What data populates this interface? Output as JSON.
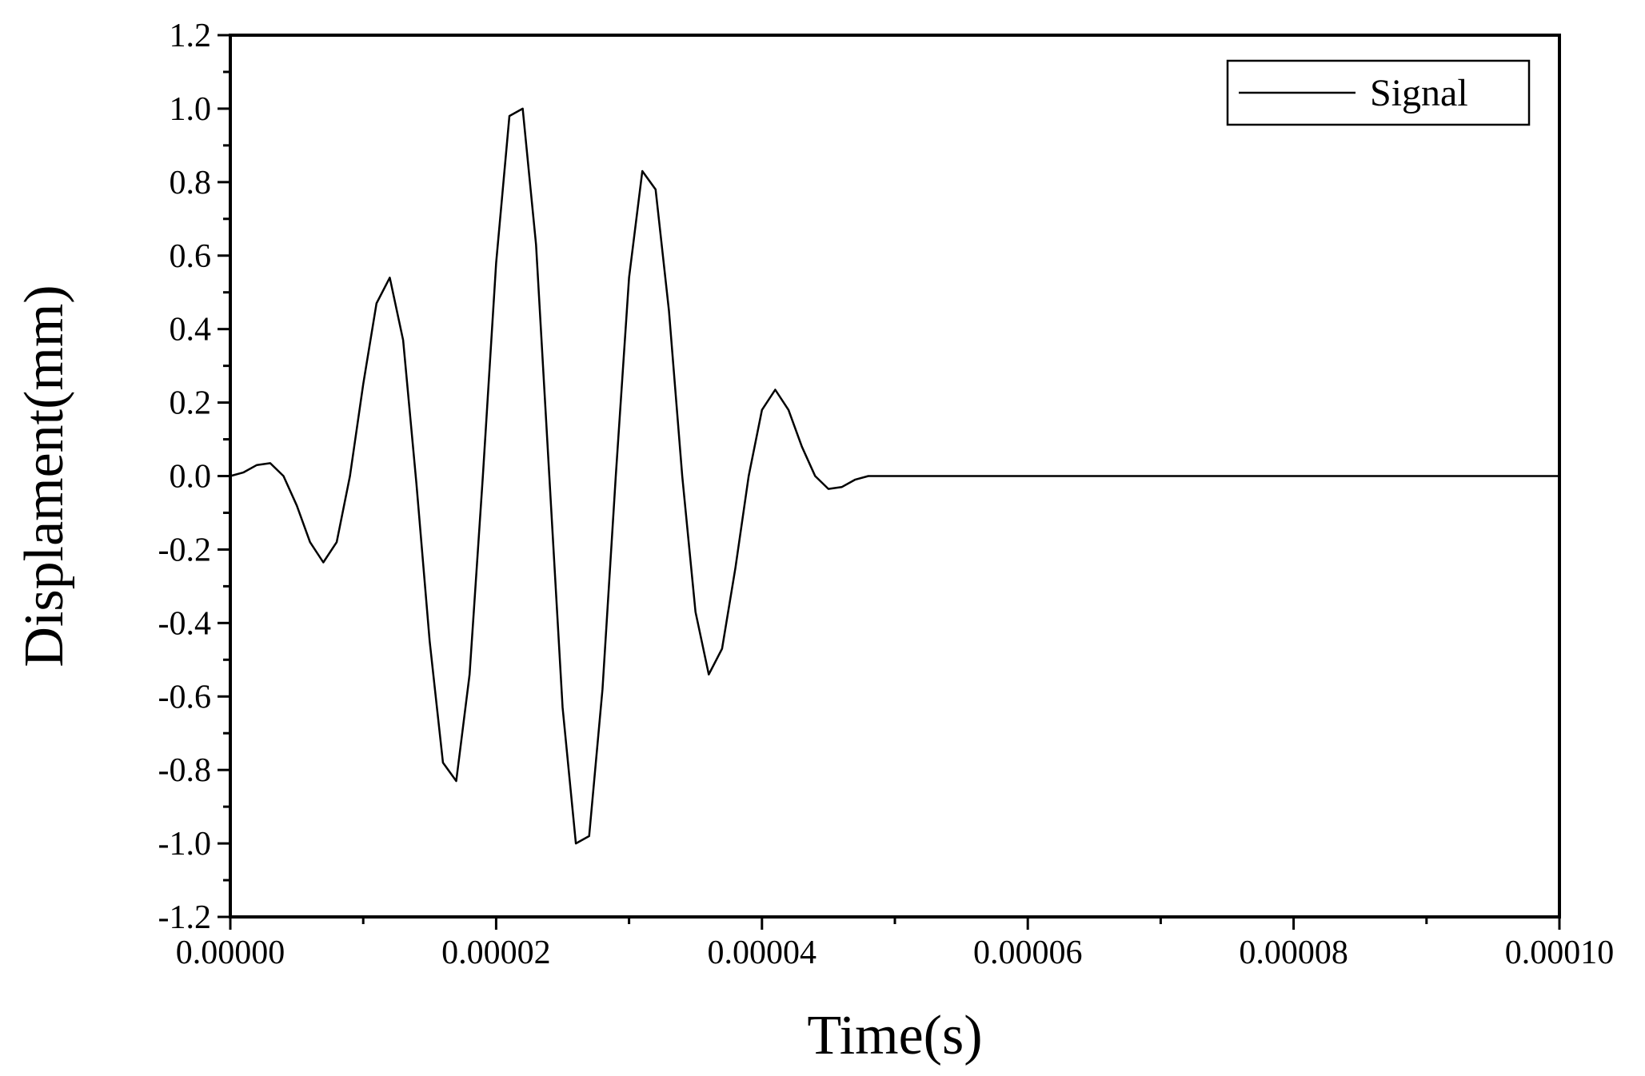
{
  "chart_data": {
    "type": "line",
    "title": "",
    "xlabel": "Time(s)",
    "ylabel": "Displament(mm)",
    "xlim": [
      0,
      0.0001
    ],
    "ylim": [
      -1.2,
      1.2
    ],
    "x_ticks": [
      0,
      2e-05,
      4e-05,
      6e-05,
      8e-05,
      0.0001
    ],
    "x_tick_labels": [
      "0.00000",
      "0.00002",
      "0.00004",
      "0.00006",
      "0.00008",
      "0.00010"
    ],
    "y_ticks": [
      -1.2,
      -1.0,
      -0.8,
      -0.6,
      -0.4,
      -0.2,
      0.0,
      0.2,
      0.4,
      0.6,
      0.8,
      1.0,
      1.2
    ],
    "y_tick_labels": [
      "-1.2",
      "-1.0",
      "-0.8",
      "-0.6",
      "-0.4",
      "-0.2",
      "0.0",
      "0.2",
      "0.4",
      "0.6",
      "0.8",
      "1.0",
      "1.2"
    ],
    "grid": false,
    "legend_position": "top-right",
    "series": [
      {
        "name": "Signal",
        "color": "#000000",
        "x": [
          0,
          1e-06,
          2e-06,
          3e-06,
          4e-06,
          5e-06,
          6e-06,
          7e-06,
          8e-06,
          9e-06,
          1e-05,
          1.1e-05,
          1.2e-05,
          1.3e-05,
          1.4e-05,
          1.5e-05,
          1.6e-05,
          1.7e-05,
          1.8e-05,
          1.9e-05,
          2e-05,
          2.1e-05,
          2.2e-05,
          2.3e-05,
          2.4e-05,
          2.5e-05,
          2.6e-05,
          2.7e-05,
          2.8e-05,
          2.9e-05,
          3e-05,
          3.1e-05,
          3.2e-05,
          3.3e-05,
          3.4e-05,
          3.5e-05,
          3.6e-05,
          3.7e-05,
          3.8e-05,
          3.9e-05,
          4e-05,
          4.1e-05,
          4.2e-05,
          4.3e-05,
          4.4e-05,
          4.5e-05,
          4.6e-05,
          4.7e-05,
          4.8e-05,
          4.9e-05,
          5e-05,
          0.0001
        ],
        "y": [
          0.0,
          0.01,
          0.03,
          0.035,
          0.0,
          -0.08,
          -0.18,
          -0.235,
          -0.18,
          0.0,
          0.25,
          0.47,
          0.54,
          0.37,
          -0.02,
          -0.45,
          -0.78,
          -0.83,
          -0.54,
          0.0,
          0.58,
          0.98,
          1.0,
          0.63,
          0.0,
          -0.63,
          -1.0,
          -0.98,
          -0.58,
          0.0,
          0.54,
          0.83,
          0.78,
          0.45,
          0.0,
          -0.37,
          -0.54,
          -0.47,
          -0.25,
          0.0,
          0.18,
          0.235,
          0.18,
          0.08,
          0.0,
          -0.035,
          -0.03,
          -0.01,
          0.0,
          0.0,
          0.0,
          0.0
        ]
      }
    ]
  }
}
